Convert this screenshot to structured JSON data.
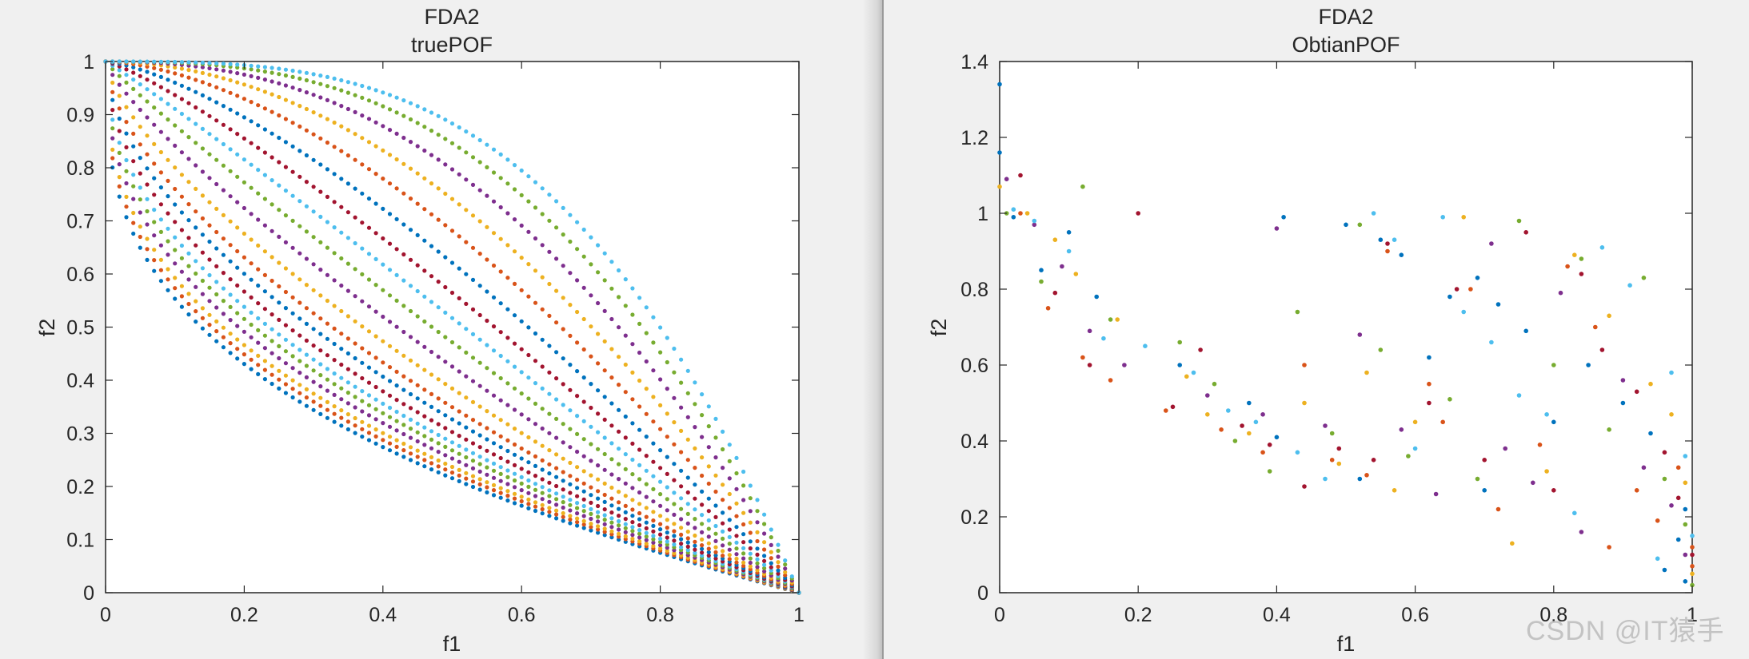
{
  "watermark": "CSDN @IT猿手",
  "colors": [
    "#0072BD",
    "#D95319",
    "#EDB120",
    "#7E2F8E",
    "#77AC30",
    "#4DBEEE",
    "#A2142F"
  ],
  "chart_data": [
    {
      "type": "scatter",
      "title": "FDA2",
      "subtitle": "truePOF",
      "xlabel": "f1",
      "ylabel": "f2",
      "xlim": [
        0,
        1
      ],
      "ylim": [
        0,
        1
      ],
      "xticks": [
        0,
        0.2,
        0.4,
        0.6,
        0.8,
        1
      ],
      "yticks": [
        0,
        0.1,
        0.2,
        0.3,
        0.4,
        0.5,
        0.6,
        0.7,
        0.8,
        0.9,
        1
      ],
      "xtick_labels": [
        "0",
        "0.2",
        "0.4",
        "0.6",
        "0.8",
        "1"
      ],
      "ytick_labels": [
        "0",
        "0.1",
        "0.2",
        "0.3",
        "0.4",
        "0.5",
        "0.6",
        "0.7",
        "0.8",
        "0.9",
        "1"
      ],
      "grid": false,
      "curve_model": "f2 = 1 - f1^H",
      "H_values": [
        0.35,
        0.37,
        0.39,
        0.42,
        0.45,
        0.48,
        0.52,
        0.57,
        0.62,
        0.7,
        0.8,
        0.92,
        1.05,
        1.2,
        1.4,
        1.65,
        1.95,
        2.3,
        2.7,
        3.1
      ],
      "points_per_curve": 101
    },
    {
      "type": "scatter",
      "title": "FDA2",
      "subtitle": "ObtianPOF",
      "xlabel": "f1",
      "ylabel": "f2",
      "xlim": [
        0,
        1
      ],
      "ylim": [
        0,
        1.4
      ],
      "xticks": [
        0,
        0.2,
        0.4,
        0.6,
        0.8,
        1
      ],
      "yticks": [
        0,
        0.2,
        0.4,
        0.6,
        0.8,
        1,
        1.2,
        1.4
      ],
      "xtick_labels": [
        "0",
        "0.2",
        "0.4",
        "0.6",
        "0.8",
        "1"
      ],
      "ytick_labels": [
        "0",
        "0.2",
        "0.4",
        "0.6",
        "0.8",
        "1",
        "1.2",
        "1.4"
      ],
      "grid": false,
      "series": [
        {
          "color_index": 0,
          "points": [
            [
              0,
              1.34
            ],
            [
              0,
              1.16
            ],
            [
              0.02,
              0.99
            ],
            [
              0.06,
              0.85
            ],
            [
              0.1,
              0.95
            ],
            [
              0.14,
              0.78
            ],
            [
              0.26,
              0.6
            ],
            [
              0.36,
              0.5
            ],
            [
              0.4,
              0.41
            ],
            [
              0.41,
              0.99
            ],
            [
              0.5,
              0.97
            ],
            [
              0.52,
              0.3
            ],
            [
              0.55,
              0.93
            ],
            [
              0.58,
              0.89
            ],
            [
              0.62,
              0.62
            ],
            [
              0.65,
              0.78
            ],
            [
              0.69,
              0.83
            ],
            [
              0.7,
              0.27
            ],
            [
              0.72,
              0.76
            ],
            [
              0.76,
              0.69
            ],
            [
              0.8,
              0.45
            ],
            [
              0.85,
              0.6
            ],
            [
              0.9,
              0.5
            ],
            [
              0.94,
              0.42
            ],
            [
              0.96,
              0.06
            ],
            [
              0.98,
              0.14
            ],
            [
              0.99,
              0.22
            ],
            [
              0.99,
              0.03
            ]
          ]
        },
        {
          "color_index": 1,
          "points": [
            [
              0.03,
              1.0
            ],
            [
              0.07,
              0.75
            ],
            [
              0.12,
              0.62
            ],
            [
              0.16,
              0.56
            ],
            [
              0.24,
              0.48
            ],
            [
              0.32,
              0.43
            ],
            [
              0.38,
              0.37
            ],
            [
              0.44,
              0.6
            ],
            [
              0.48,
              0.35
            ],
            [
              0.53,
              0.31
            ],
            [
              0.56,
              0.9
            ],
            [
              0.62,
              0.55
            ],
            [
              0.64,
              0.45
            ],
            [
              0.68,
              0.8
            ],
            [
              0.72,
              0.22
            ],
            [
              0.78,
              0.39
            ],
            [
              0.82,
              0.86
            ],
            [
              0.86,
              0.7
            ],
            [
              0.88,
              0.12
            ],
            [
              0.92,
              0.27
            ],
            [
              0.95,
              0.19
            ],
            [
              0.98,
              0.33
            ],
            [
              1.0,
              0.07
            ],
            [
              1.0,
              0.12
            ]
          ]
        },
        {
          "color_index": 2,
          "points": [
            [
              0,
              1.07
            ],
            [
              0.04,
              1.0
            ],
            [
              0.08,
              0.93
            ],
            [
              0.11,
              0.84
            ],
            [
              0.17,
              0.72
            ],
            [
              0.27,
              0.57
            ],
            [
              0.3,
              0.47
            ],
            [
              0.36,
              0.42
            ],
            [
              0.44,
              0.5
            ],
            [
              0.49,
              0.34
            ],
            [
              0.53,
              0.58
            ],
            [
              0.57,
              0.27
            ],
            [
              0.6,
              0.45
            ],
            [
              0.67,
              0.99
            ],
            [
              0.74,
              0.13
            ],
            [
              0.79,
              0.32
            ],
            [
              0.83,
              0.89
            ],
            [
              0.88,
              0.73
            ],
            [
              0.94,
              0.55
            ],
            [
              0.97,
              0.47
            ],
            [
              0.99,
              0.29
            ],
            [
              1.0,
              0.05
            ]
          ]
        },
        {
          "color_index": 3,
          "points": [
            [
              0.01,
              1.09
            ],
            [
              0.05,
              0.97
            ],
            [
              0.09,
              0.86
            ],
            [
              0.13,
              0.69
            ],
            [
              0.18,
              0.6
            ],
            [
              0.3,
              0.52
            ],
            [
              0.38,
              0.47
            ],
            [
              0.4,
              0.96
            ],
            [
              0.47,
              0.44
            ],
            [
              0.52,
              0.68
            ],
            [
              0.58,
              0.43
            ],
            [
              0.63,
              0.26
            ],
            [
              0.71,
              0.92
            ],
            [
              0.73,
              0.38
            ],
            [
              0.77,
              0.29
            ],
            [
              0.81,
              0.79
            ],
            [
              0.84,
              0.16
            ],
            [
              0.9,
              0.56
            ],
            [
              0.93,
              0.33
            ],
            [
              0.97,
              0.23
            ],
            [
              0.99,
              0.1
            ]
          ]
        },
        {
          "color_index": 4,
          "points": [
            [
              0.01,
              1.0
            ],
            [
              0.06,
              0.82
            ],
            [
              0.12,
              1.07
            ],
            [
              0.16,
              0.72
            ],
            [
              0.26,
              0.66
            ],
            [
              0.31,
              0.55
            ],
            [
              0.34,
              0.4
            ],
            [
              0.39,
              0.32
            ],
            [
              0.43,
              0.74
            ],
            [
              0.48,
              0.42
            ],
            [
              0.52,
              0.97
            ],
            [
              0.55,
              0.64
            ],
            [
              0.59,
              0.36
            ],
            [
              0.65,
              0.51
            ],
            [
              0.69,
              0.3
            ],
            [
              0.75,
              0.98
            ],
            [
              0.8,
              0.6
            ],
            [
              0.84,
              0.88
            ],
            [
              0.88,
              0.43
            ],
            [
              0.93,
              0.83
            ],
            [
              0.96,
              0.3
            ],
            [
              0.99,
              0.18
            ],
            [
              1.0,
              0.02
            ]
          ]
        },
        {
          "color_index": 5,
          "points": [
            [
              0.02,
              1.01
            ],
            [
              0.05,
              0.98
            ],
            [
              0.1,
              0.9
            ],
            [
              0.15,
              0.67
            ],
            [
              0.21,
              0.65
            ],
            [
              0.28,
              0.58
            ],
            [
              0.33,
              0.48
            ],
            [
              0.37,
              0.45
            ],
            [
              0.43,
              0.37
            ],
            [
              0.47,
              0.3
            ],
            [
              0.54,
              1.0
            ],
            [
              0.57,
              0.93
            ],
            [
              0.6,
              0.38
            ],
            [
              0.64,
              0.99
            ],
            [
              0.67,
              0.74
            ],
            [
              0.71,
              0.66
            ],
            [
              0.75,
              0.52
            ],
            [
              0.79,
              0.47
            ],
            [
              0.83,
              0.21
            ],
            [
              0.87,
              0.91
            ],
            [
              0.91,
              0.81
            ],
            [
              0.95,
              0.09
            ],
            [
              0.97,
              0.58
            ],
            [
              0.99,
              0.36
            ],
            [
              1.0,
              0.15
            ]
          ]
        },
        {
          "color_index": 6,
          "points": [
            [
              0.03,
              1.1
            ],
            [
              0.08,
              0.79
            ],
            [
              0.13,
              0.6
            ],
            [
              0.2,
              1.0
            ],
            [
              0.25,
              0.49
            ],
            [
              0.29,
              0.64
            ],
            [
              0.35,
              0.44
            ],
            [
              0.39,
              0.39
            ],
            [
              0.44,
              0.28
            ],
            [
              0.49,
              0.38
            ],
            [
              0.54,
              0.35
            ],
            [
              0.56,
              0.92
            ],
            [
              0.62,
              0.5
            ],
            [
              0.66,
              0.8
            ],
            [
              0.7,
              0.35
            ],
            [
              0.76,
              0.95
            ],
            [
              0.8,
              0.27
            ],
            [
              0.84,
              0.84
            ],
            [
              0.87,
              0.64
            ],
            [
              0.92,
              0.53
            ],
            [
              0.96,
              0.37
            ],
            [
              0.98,
              0.25
            ],
            [
              1.0,
              0.1
            ]
          ]
        }
      ]
    }
  ]
}
